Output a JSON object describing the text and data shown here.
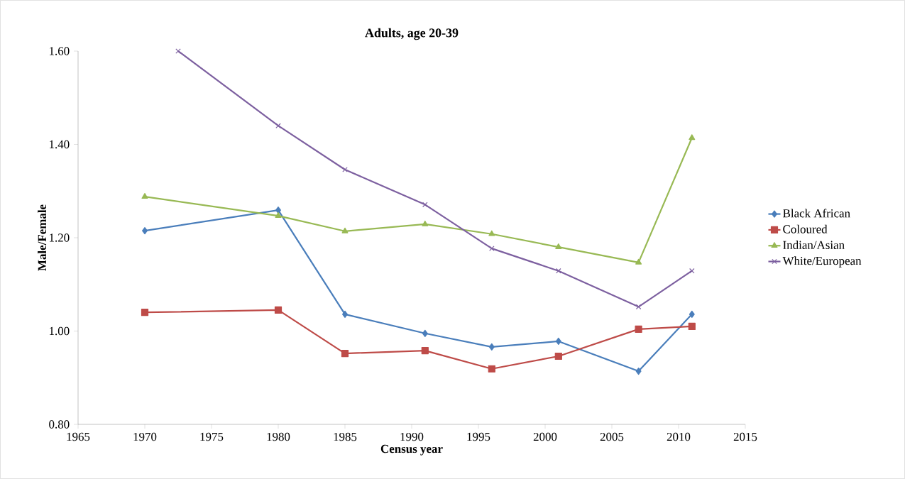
{
  "chart_data": {
    "type": "line",
    "title": "Adults, age 20-39",
    "xlabel": "Census year",
    "ylabel": "Male/Female",
    "x": [
      1970,
      1980,
      1985,
      1991,
      1996,
      2001,
      2007,
      2011
    ],
    "series": [
      {
        "name": "Black African",
        "color": "#4a7ebb",
        "marker": "diamond",
        "values": [
          1.215,
          1.259,
          1.036,
          0.995,
          0.966,
          0.978,
          0.914,
          1.036
        ]
      },
      {
        "name": "Coloured",
        "color": "#be4b48",
        "marker": "square",
        "values": [
          1.04,
          1.045,
          0.952,
          0.958,
          0.919,
          0.946,
          1.004,
          1.01
        ]
      },
      {
        "name": "Indian/Asian",
        "color": "#98b954",
        "marker": "triangle",
        "values": [
          1.288,
          1.247,
          1.214,
          1.229,
          1.208,
          1.18,
          1.147,
          1.414
        ]
      },
      {
        "name": "White/European",
        "color": "#7d60a0",
        "marker": "cross",
        "x": [
          1972.5,
          1980,
          1985,
          1991,
          1996,
          2001,
          2007,
          2011
        ],
        "values": [
          1.6,
          1.44,
          1.346,
          1.271,
          1.177,
          1.129,
          1.052,
          1.129
        ]
      }
    ],
    "xlim": [
      1965,
      2015
    ],
    "xticks": [
      1965,
      1970,
      1975,
      1980,
      1985,
      1990,
      1995,
      2000,
      2005,
      2010,
      2015
    ],
    "ylim": [
      0.8,
      1.6
    ],
    "yticks": [
      {
        "value": 0.8,
        "label": "0.80"
      },
      {
        "value": 1.0,
        "label": "1.00"
      },
      {
        "value": 1.2,
        "label": "1.20"
      },
      {
        "value": 1.4,
        "label": "1.40"
      },
      {
        "value": 1.6,
        "label": "1.60"
      }
    ],
    "grid": false,
    "legend": "right",
    "line_style": "solid"
  }
}
